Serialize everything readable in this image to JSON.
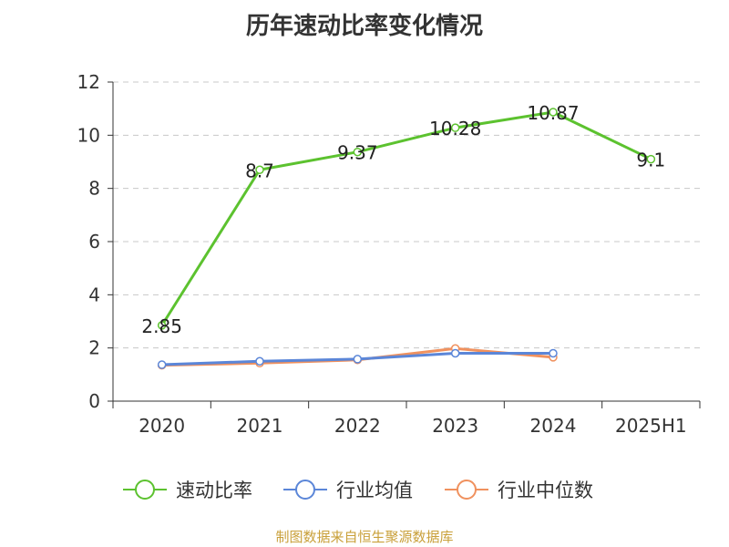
{
  "chart_data": {
    "type": "line",
    "title": "历年速动比率变化情况",
    "categories": [
      "2020",
      "2021",
      "2022",
      "2023",
      "2024",
      "2025H1"
    ],
    "ylim": [
      0,
      12
    ],
    "yticks": [
      "0",
      "2",
      "4",
      "6",
      "8",
      "10",
      "12"
    ],
    "grid": "horizontal dashed",
    "legend_position": "bottom",
    "series": [
      {
        "name": "速动比率",
        "color": "#5cc22f",
        "values": [
          2.85,
          8.7,
          9.37,
          10.28,
          10.87,
          9.1
        ],
        "labels": [
          "2.85",
          "8.7",
          "9.37",
          "10.28",
          "10.87",
          "9.1"
        ]
      },
      {
        "name": "行业均值",
        "color": "#5b86d8",
        "values": [
          1.37,
          1.5,
          1.58,
          1.8,
          1.8,
          null
        ]
      },
      {
        "name": "行业中位数",
        "color": "#f0915e",
        "values": [
          1.35,
          1.43,
          1.55,
          1.98,
          1.65,
          null
        ]
      }
    ],
    "source": "制图数据来自恒生聚源数据库"
  }
}
